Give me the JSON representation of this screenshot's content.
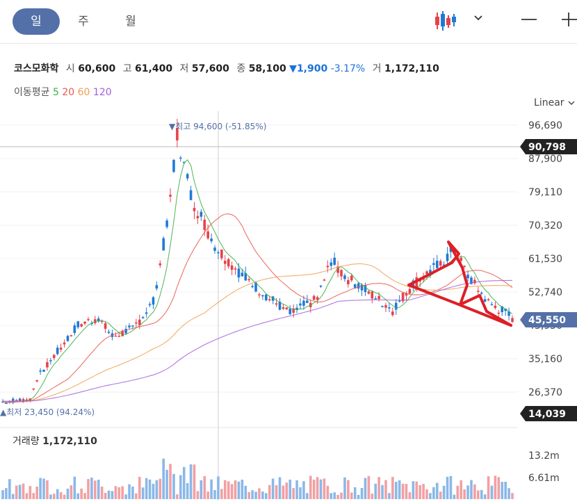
{
  "tabs": [
    {
      "label": "일",
      "active": true
    },
    {
      "label": "주",
      "active": false
    },
    {
      "label": "월",
      "active": false
    }
  ],
  "toolbar_icons": [
    "candlestick-icon",
    "chevron-down-icon",
    "minimize-icon",
    "plus-icon"
  ],
  "stock": {
    "name": "코스모화학",
    "open_label": "시",
    "open": "60,600",
    "high_label": "고",
    "high": "61,400",
    "low_label": "저",
    "low": "57,600",
    "close_label": "종",
    "close": "58,100",
    "change": "▼1,900",
    "change_pct": "-3.17%",
    "volume_label": "거",
    "volume": "1,172,110"
  },
  "moving_average": {
    "label": "이동평균",
    "periods": [
      {
        "value": "5",
        "color": "#3fae49"
      },
      {
        "value": "20",
        "color": "#e8594f"
      },
      {
        "value": "60",
        "color": "#f0a050"
      },
      {
        "value": "120",
        "color": "#a45de0"
      }
    ]
  },
  "scale_mode": "Linear",
  "colors": {
    "up": "#e8414a",
    "down": "#1f7ad6",
    "accent": "#5470a8",
    "annotation": "#dd1f26",
    "volume_up": "#f2a0a3",
    "volume_down": "#8ab8e8"
  },
  "chart_data": {
    "type": "candlestick",
    "y_ticks": [
      "96,690",
      "87,900",
      "79,110",
      "70,320",
      "61,530",
      "52,740",
      "43,950",
      "35,160",
      "26,370"
    ],
    "ylim": [
      14039,
      96690
    ],
    "crosshair_price": "90,798",
    "current_price": "45,550",
    "min_marker": "14,039",
    "high_annotation": "▼최고 94,600 (-51.85%)",
    "low_annotation": "▲최저 23,450 (94.24%)",
    "volume_label": "거래량",
    "volume_value": "1,172,110",
    "volume_ticks": [
      "13.2m",
      "6.61m"
    ]
  }
}
